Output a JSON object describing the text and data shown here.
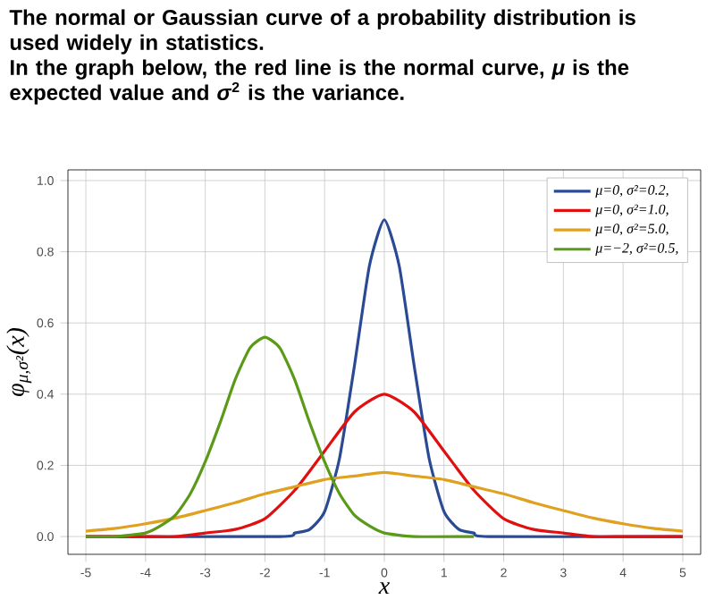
{
  "chart_data": {
    "type": "line",
    "title": "The normal or Gaussian curve of a probability distribution is used widely in statistics.",
    "subtitle": "In the graph below, the red line is the normal curve, *μ* is the expected value and *σ*$^{2}$ is the variance.",
    "xlabel": "x",
    "ylabel": "φ$_{μ,σ²}$(x)",
    "xlim": [
      -5.3,
      5.3
    ],
    "ylim": [
      -0.05,
      1.03
    ],
    "xticks": [
      -5,
      -4,
      -3,
      -2,
      -1,
      0,
      1,
      2,
      3,
      4,
      5
    ],
    "yticks": [
      {
        "value": 0,
        "label": "0.0"
      },
      {
        "value": 0.2,
        "label": "0.2"
      },
      {
        "value": 0.4,
        "label": "0.4"
      },
      {
        "value": 0.6,
        "label": "0.6"
      },
      {
        "value": 0.8,
        "label": "0.8"
      },
      {
        "value": 1,
        "label": "1.0"
      }
    ],
    "grid": true,
    "legend": "top right",
    "marker": "none",
    "line_style": "solid",
    "series": [
      {
        "name": "μ=0,   σ²=0.2,",
        "color": "#2b4a94",
        "x": [
          -5,
          -1.75,
          -1.5,
          -1.25,
          -1,
          -0.75,
          -0.5,
          -0.25,
          0,
          0.25,
          0.5,
          0.75,
          1,
          1.25,
          1.5,
          1.75,
          5
        ],
        "values": [
          0,
          0,
          0.01,
          0.02,
          0.07,
          0.22,
          0.48,
          0.76,
          0.89,
          0.76,
          0.48,
          0.22,
          0.07,
          0.02,
          0.01,
          0,
          0
        ]
      },
      {
        "name": "μ=0,   σ²=1.0,",
        "color": "#e01010",
        "x": [
          -5,
          -4.5,
          -4,
          -3.5,
          -3,
          -2.5,
          -2,
          -1.5,
          -1,
          -0.5,
          0,
          0.5,
          1,
          1.5,
          2,
          2.5,
          3,
          3.5,
          4,
          4.5,
          5
        ],
        "values": [
          0,
          0,
          0,
          0,
          0.01,
          0.02,
          0.05,
          0.13,
          0.24,
          0.35,
          0.4,
          0.35,
          0.24,
          0.13,
          0.05,
          0.02,
          0.01,
          0,
          0,
          0,
          0
        ]
      },
      {
        "name": "μ=0,   σ²=5.0,",
        "color": "#e0a020",
        "x": [
          -5,
          -4.5,
          -4,
          -3.5,
          -3,
          -2.5,
          -2,
          -1.5,
          -1,
          -0.5,
          0,
          0.5,
          1,
          1.5,
          2,
          2.5,
          3,
          3.5,
          4,
          4.5,
          5
        ],
        "values": [
          0.015,
          0.023,
          0.036,
          0.052,
          0.073,
          0.095,
          0.12,
          0.14,
          0.16,
          0.17,
          0.18,
          0.17,
          0.16,
          0.14,
          0.12,
          0.095,
          0.073,
          0.052,
          0.036,
          0.023,
          0.015
        ]
      },
      {
        "name": "μ=−2, σ²=0.5,",
        "color": "#5a9a18",
        "x": [
          -5,
          -4.5,
          -4,
          -3.75,
          -3.5,
          -3.25,
          -3,
          -2.75,
          -2.5,
          -2.25,
          -2,
          -1.75,
          -1.5,
          -1.25,
          -1,
          -0.75,
          -0.5,
          -0.25,
          0,
          0.5,
          1.5
        ],
        "values": [
          0,
          0,
          0.01,
          0.03,
          0.06,
          0.12,
          0.21,
          0.32,
          0.44,
          0.53,
          0.56,
          0.53,
          0.44,
          0.32,
          0.21,
          0.12,
          0.06,
          0.03,
          0.01,
          0,
          0
        ]
      }
    ]
  }
}
